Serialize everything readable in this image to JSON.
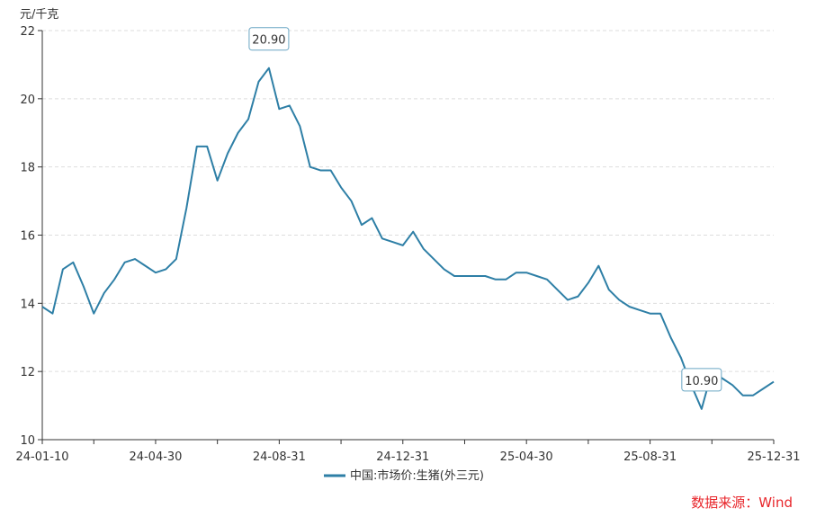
{
  "chart_data": {
    "type": "line",
    "ylabel": "元/千克",
    "ylim": [
      10,
      22
    ],
    "yticks": [
      10,
      12,
      14,
      16,
      18,
      20,
      22
    ],
    "xlim": [
      "24-01-10",
      "25-12-31"
    ],
    "xtick_labels": [
      "24-01-10",
      "24-04-30",
      "24-08-31",
      "24-12-31",
      "25-04-30",
      "25-08-31",
      "25-12-31"
    ],
    "grid": "horizontal-dashed",
    "legend_position": "bottom",
    "series": [
      {
        "name": "中国:市场价:生猪(外三元)",
        "color": "#2e7fa6",
        "values": [
          13.9,
          13.7,
          15.0,
          15.2,
          14.5,
          13.7,
          14.3,
          14.7,
          15.2,
          15.3,
          15.1,
          14.9,
          15.0,
          15.3,
          16.8,
          18.6,
          18.6,
          17.6,
          18.4,
          19.0,
          19.4,
          20.5,
          20.9,
          19.7,
          19.8,
          19.2,
          18.0,
          17.9,
          17.9,
          17.4,
          17.0,
          16.3,
          16.5,
          15.9,
          15.8,
          15.7,
          16.1,
          15.6,
          15.3,
          15.0,
          14.8,
          14.8,
          14.8,
          14.8,
          14.7,
          14.7,
          14.9,
          14.9,
          14.8,
          14.7,
          14.4,
          14.1,
          14.2,
          14.6,
          15.1,
          14.4,
          14.1,
          13.9,
          13.8,
          13.7,
          13.7,
          13.0,
          12.4,
          11.6,
          10.9,
          12.0,
          11.8,
          11.6,
          11.3,
          11.3,
          11.5,
          11.7
        ]
      }
    ],
    "annotations": [
      {
        "label": "20.90",
        "index": 22,
        "value": 20.9
      },
      {
        "label": "10.90",
        "index": 64,
        "value": 10.9
      }
    ]
  },
  "source": "数据来源：Wind"
}
